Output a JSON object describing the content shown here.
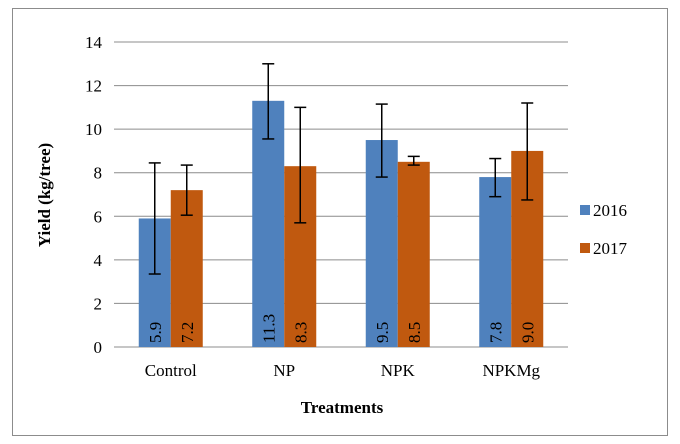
{
  "chart_data": {
    "type": "bar",
    "title": "",
    "xlabel": "Treatments",
    "ylabel": "Yield (kg/tree)",
    "categories": [
      "Control",
      "NP",
      "NPK",
      "NPKMg"
    ],
    "ylim": [
      0,
      14
    ],
    "yticks": [
      0,
      2,
      4,
      6,
      8,
      10,
      12,
      14
    ],
    "grid": true,
    "legend_position": "right",
    "series": [
      {
        "name": "2016",
        "color": "#4f81bd",
        "values": [
          5.9,
          11.3,
          9.5,
          7.8
        ],
        "labels": [
          "5.9",
          "11.3",
          "9.5",
          "7.8"
        ],
        "error_low": [
          3.35,
          9.55,
          7.8,
          6.9
        ],
        "error_high": [
          8.45,
          13.0,
          11.15,
          8.65
        ]
      },
      {
        "name": "2017",
        "color": "#c0590f",
        "values": [
          7.2,
          8.3,
          8.5,
          9.0
        ],
        "labels": [
          "7.2",
          "8.3",
          "8.5",
          "9.0"
        ],
        "error_low": [
          6.05,
          5.7,
          8.35,
          6.75
        ],
        "error_high": [
          8.35,
          11.0,
          8.75,
          11.2
        ]
      }
    ]
  }
}
